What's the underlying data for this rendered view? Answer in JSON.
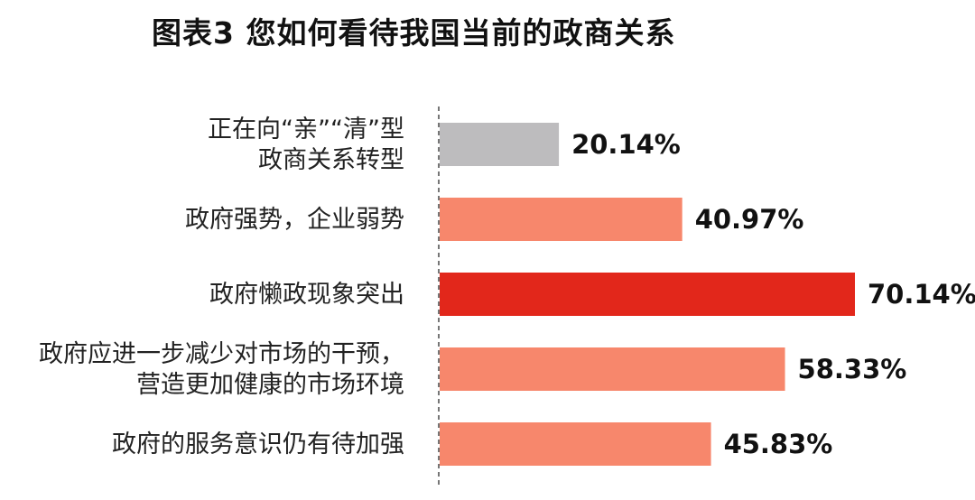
{
  "chart_data": {
    "type": "bar",
    "orientation": "horizontal",
    "title": "图表3  您如何看待我国当前的政商关系",
    "categories": [
      [
        "正在向“亲”“清”型",
        "政商关系转型"
      ],
      [
        "政府强势，企业弱势"
      ],
      [
        "政府懒政现象突出"
      ],
      [
        "政府应进一步减少对市场的干预，",
        "营造更加健康的市场环境"
      ],
      [
        "政府的服务意识仍有待加强"
      ]
    ],
    "values": [
      20.14,
      40.97,
      70.14,
      58.33,
      45.83
    ],
    "value_labels": [
      "20.14%",
      "40.97%",
      "70.14%",
      "58.33%",
      "45.83%"
    ],
    "bar_colors": [
      "#bdbcbe",
      "#f7876c",
      "#e2271b",
      "#f7876c",
      "#f7876c"
    ],
    "xlim": [
      0,
      100
    ],
    "axis_style": "dashed-vertical-baseline",
    "grid": false,
    "legend": "none"
  }
}
